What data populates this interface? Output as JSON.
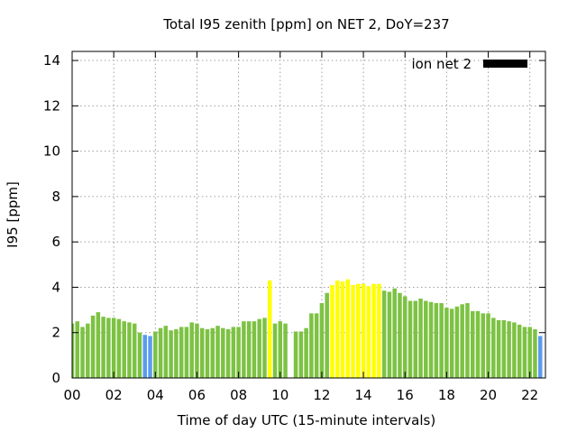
{
  "chart_data": {
    "type": "bar",
    "title": "Total I95 zenith [ppm] on NET 2, DoY=237",
    "xlabel": "Time of day UTC (15-minute intervals)",
    "ylabel": "I95 [ppm]",
    "xlim": [
      0,
      22.75
    ],
    "ylim": [
      0,
      14.4
    ],
    "x_ticks": [
      0,
      2,
      4,
      6,
      8,
      10,
      12,
      14,
      16,
      18,
      20,
      22
    ],
    "x_tick_labels": [
      "00",
      "02",
      "04",
      "06",
      "08",
      "10",
      "12",
      "14",
      "16",
      "18",
      "20",
      "22"
    ],
    "y_ticks": [
      0,
      2,
      4,
      6,
      8,
      10,
      12,
      14
    ],
    "y_tick_labels": [
      "0",
      "2",
      "4",
      "6",
      "8",
      "10",
      "12",
      "14"
    ],
    "grid": true,
    "legend": {
      "position": "top-right",
      "entries": [
        {
          "label": "ion net 2",
          "color": "#000000"
        }
      ]
    },
    "colors": {
      "green": "#7dc243",
      "yellow": "#ffff00",
      "blue": "#5b9bef"
    },
    "interval_hours": 0.25,
    "values": [
      2.4,
      2.5,
      2.25,
      2.4,
      2.75,
      2.9,
      2.7,
      2.65,
      2.65,
      2.6,
      2.5,
      2.45,
      2.4,
      2.0,
      1.9,
      1.85,
      2.05,
      2.2,
      2.3,
      2.1,
      2.15,
      2.25,
      2.25,
      2.45,
      2.4,
      2.2,
      2.15,
      2.2,
      2.3,
      2.2,
      2.15,
      2.25,
      2.25,
      2.5,
      2.5,
      2.5,
      2.6,
      2.65,
      4.3,
      2.4,
      2.5,
      2.4,
      null,
      2.05,
      2.05,
      2.2,
      2.85,
      2.85,
      3.3,
      3.75,
      4.1,
      4.3,
      4.25,
      4.35,
      4.1,
      4.15,
      4.15,
      4.05,
      4.15,
      4.15,
      3.85,
      3.8,
      3.95,
      3.75,
      3.6,
      3.4,
      3.4,
      3.5,
      3.4,
      3.35,
      3.3,
      3.3,
      3.1,
      3.05,
      3.15,
      3.25,
      3.3,
      2.95,
      2.95,
      2.85,
      2.85,
      2.65,
      2.55,
      2.55,
      2.5,
      2.45,
      2.35,
      2.25,
      2.25,
      2.15,
      1.85
    ],
    "bar_colors": [
      "green",
      "green",
      "green",
      "green",
      "green",
      "green",
      "green",
      "green",
      "green",
      "green",
      "green",
      "green",
      "green",
      "green",
      "blue",
      "blue",
      "green",
      "green",
      "green",
      "green",
      "green",
      "green",
      "green",
      "green",
      "green",
      "green",
      "green",
      "green",
      "green",
      "green",
      "green",
      "green",
      "green",
      "green",
      "green",
      "green",
      "green",
      "green",
      "yellow",
      "green",
      "green",
      "green",
      "green",
      "green",
      "green",
      "green",
      "green",
      "green",
      "green",
      "green",
      "yellow",
      "yellow",
      "yellow",
      "yellow",
      "yellow",
      "yellow",
      "yellow",
      "yellow",
      "yellow",
      "yellow",
      "green",
      "green",
      "green",
      "green",
      "green",
      "green",
      "green",
      "green",
      "green",
      "green",
      "green",
      "green",
      "green",
      "green",
      "green",
      "green",
      "green",
      "green",
      "green",
      "green",
      "green",
      "green",
      "green",
      "green",
      "green",
      "green",
      "green",
      "green",
      "green",
      "green",
      "blue"
    ]
  }
}
